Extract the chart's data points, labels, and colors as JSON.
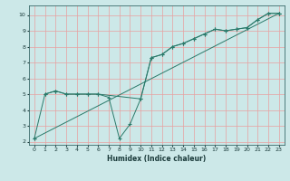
{
  "xlabel": "Humidex (Indice chaleur)",
  "background_color": "#cce8e8",
  "grid_color": "#e8a0a0",
  "line_color": "#2a7a6a",
  "xlim": [
    -0.5,
    23.5
  ],
  "ylim": [
    1.8,
    10.6
  ],
  "yticks": [
    2,
    3,
    4,
    5,
    6,
    7,
    8,
    9,
    10
  ],
  "xticks": [
    0,
    1,
    2,
    3,
    4,
    5,
    6,
    7,
    8,
    9,
    10,
    11,
    12,
    13,
    14,
    15,
    16,
    17,
    18,
    19,
    20,
    21,
    22,
    23
  ],
  "line1_x": [
    0,
    23
  ],
  "line1_y": [
    2.2,
    10.1
  ],
  "line2_x": [
    0,
    1,
    2,
    3,
    4,
    5,
    6,
    7,
    8,
    9,
    10,
    11,
    12,
    13,
    14,
    15,
    16,
    17,
    18,
    19,
    20,
    21,
    22,
    23
  ],
  "line2_y": [
    2.2,
    5.0,
    5.2,
    5.0,
    5.0,
    5.0,
    5.0,
    4.8,
    2.2,
    3.1,
    4.7,
    7.3,
    7.5,
    8.0,
    8.2,
    8.5,
    8.8,
    9.1,
    9.0,
    9.1,
    9.2,
    9.7,
    10.1,
    10.1
  ],
  "line3_x": [
    1,
    2,
    3,
    4,
    5,
    6,
    10,
    11,
    12,
    13,
    14,
    15,
    16,
    17,
    18,
    19,
    20,
    21,
    22,
    23
  ],
  "line3_y": [
    5.0,
    5.2,
    5.0,
    5.0,
    5.0,
    5.0,
    4.7,
    7.3,
    7.5,
    8.0,
    8.2,
    8.5,
    8.8,
    9.1,
    9.0,
    9.1,
    9.2,
    9.7,
    10.1,
    10.1
  ],
  "tick_fontsize": 4.5,
  "xlabel_fontsize": 5.5
}
